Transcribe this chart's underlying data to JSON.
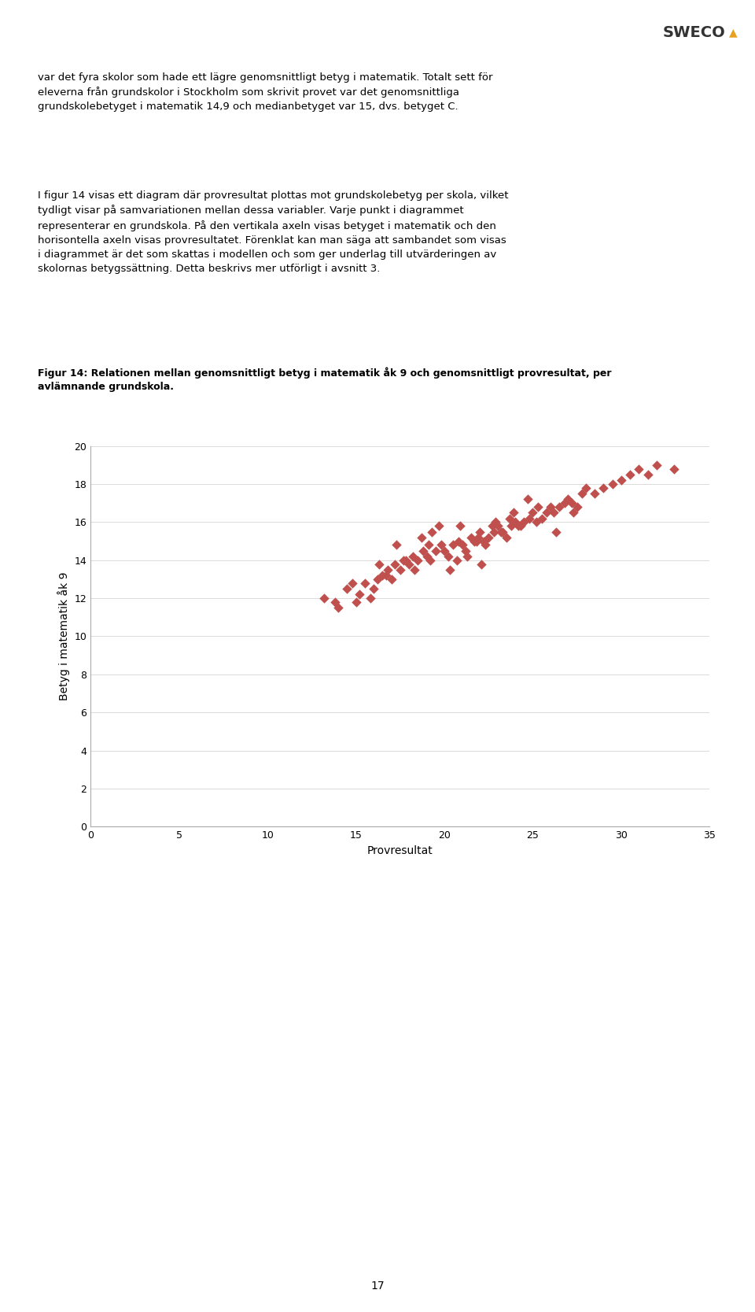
{
  "title_caption": "Figur 14: Relationen mellan genomsnittligt betyg i matematik åk 9 och genomsnittligt provresultat, per\navlämnande grundskola.",
  "xlabel": "Provresultat",
  "ylabel": "Betyg i matematik åk 9",
  "xlim": [
    0,
    35
  ],
  "ylim": [
    0,
    20
  ],
  "xticks": [
    0,
    5,
    10,
    15,
    20,
    25,
    30,
    35
  ],
  "yticks": [
    0,
    2,
    4,
    6,
    8,
    10,
    12,
    14,
    16,
    18,
    20
  ],
  "marker_color": "#C0504D",
  "background_color": "#ffffff",
  "scatter_x": [
    13.2,
    13.8,
    14.5,
    14.0,
    15.2,
    15.5,
    16.0,
    16.2,
    16.5,
    16.8,
    17.0,
    17.2,
    17.5,
    17.8,
    18.0,
    18.2,
    18.5,
    18.8,
    19.0,
    19.2,
    19.5,
    19.8,
    20.0,
    20.2,
    20.5,
    20.8,
    21.0,
    21.2,
    21.5,
    21.8,
    22.0,
    22.2,
    22.5,
    22.8,
    23.0,
    23.2,
    23.5,
    23.8,
    24.0,
    24.2,
    24.5,
    24.8,
    25.0,
    25.2,
    25.5,
    25.8,
    26.0,
    26.2,
    26.5,
    26.8,
    27.0,
    27.2,
    27.5,
    27.8,
    28.0,
    28.5,
    29.0,
    29.5,
    30.0,
    30.5,
    31.0,
    31.5,
    32.0,
    33.0,
    14.8,
    15.8,
    16.3,
    17.3,
    18.3,
    19.3,
    20.3,
    21.3,
    22.3,
    23.3,
    24.3,
    25.3,
    26.3,
    27.3,
    19.7,
    20.7,
    21.7,
    22.7,
    23.7,
    24.7,
    17.7,
    18.7,
    15.0,
    16.7,
    20.9,
    21.9,
    22.9,
    23.9,
    19.1,
    22.1
  ],
  "scatter_y": [
    12.0,
    11.8,
    12.5,
    11.5,
    12.2,
    12.8,
    12.5,
    13.0,
    13.2,
    13.5,
    13.0,
    13.8,
    13.5,
    14.0,
    13.8,
    14.2,
    14.0,
    14.5,
    14.2,
    14.0,
    14.5,
    14.8,
    14.5,
    14.2,
    14.8,
    15.0,
    14.8,
    14.5,
    15.2,
    15.0,
    15.5,
    15.0,
    15.2,
    15.5,
    15.8,
    15.5,
    15.2,
    15.8,
    16.0,
    15.8,
    16.0,
    16.2,
    16.5,
    16.0,
    16.2,
    16.5,
    16.8,
    16.5,
    16.8,
    17.0,
    17.2,
    17.0,
    16.8,
    17.5,
    17.8,
    17.5,
    17.8,
    18.0,
    18.2,
    18.5,
    18.8,
    18.5,
    19.0,
    18.8,
    12.8,
    12.0,
    13.8,
    14.8,
    13.5,
    15.5,
    13.5,
    14.2,
    14.8,
    15.5,
    15.8,
    16.8,
    15.5,
    16.5,
    15.8,
    14.0,
    15.0,
    15.8,
    16.2,
    17.2,
    14.0,
    15.2,
    11.8,
    13.2,
    15.8,
    15.2,
    16.0,
    16.5,
    14.8,
    13.8
  ],
  "page_number": "17",
  "body_text_1": "var det fyra skolor som hade ett lägre genomsnittligt betyg i matematik. Totalt sett för\neleverna från grundskolor i Stockholm som skrivit provet var det genomsnittliga\ngrundskolebetyget i matematik 14,9 och medianbetyget var 15, dvs. betyget C.",
  "body_text_2": "I figur 14 visas ett diagram där provresultat plottas mot grundskolebetyg per skola, vilket\ntydligt visar på samvariationen mellan dessa variabler. Varje punkt i diagrammet\nrepresenterar en grundskola. På den vertikala axeln visas betyget i matematik och den\nhorisontella axeln visas provresultatet. Förenklat kan man säga att sambandet som visas\ni diagrammet är det som skattas i modellen och som ger underlag till utvärderingen av\nskolornas betygssättning. Detta beskrivs mer utförligt i avsnitt 3."
}
